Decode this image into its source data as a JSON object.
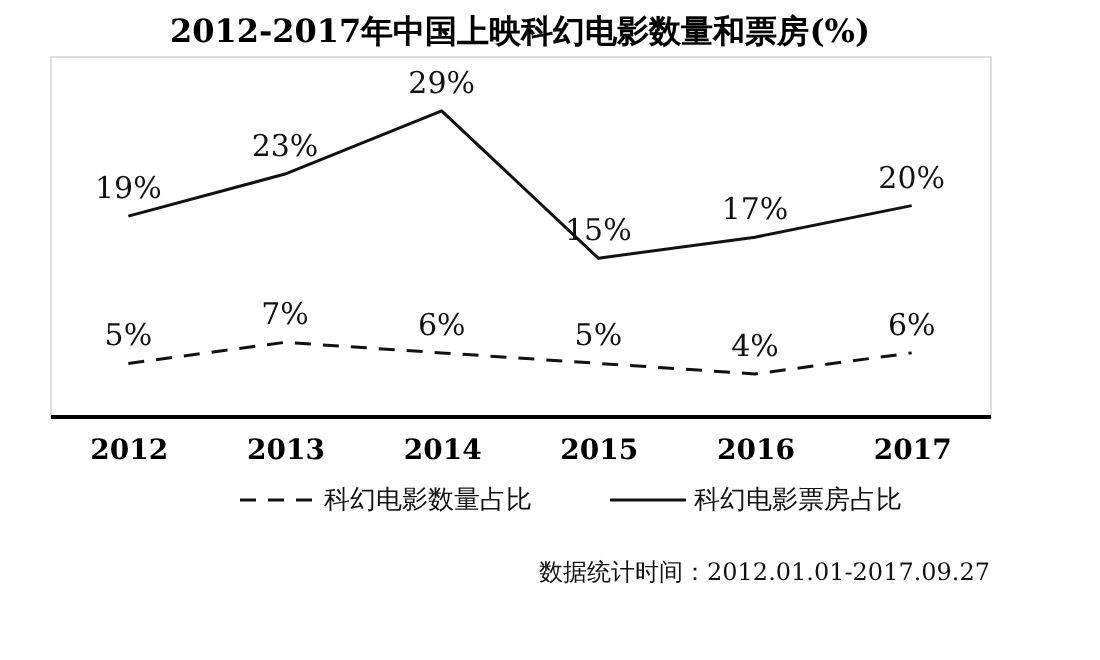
{
  "chart_data": {
    "type": "line",
    "title": "2012-2017年中国上映科幻电影数量和票房(%)",
    "categories": [
      "2012",
      "2013",
      "2014",
      "2015",
      "2016",
      "2017"
    ],
    "series": [
      {
        "name": "科幻电影数量占比",
        "color": "#111111",
        "line_style": "dashed",
        "values": [
          5,
          7,
          6,
          5,
          4,
          6
        ],
        "value_labels": [
          "5%",
          "7%",
          "6%",
          "5%",
          "4%",
          "6%"
        ]
      },
      {
        "name": "科幻电影票房占比",
        "color": "#111111",
        "line_style": "solid",
        "values": [
          19,
          23,
          29,
          15,
          17,
          20
        ],
        "value_labels": [
          "19%",
          "23%",
          "29%",
          "15%",
          "17%",
          "20%"
        ]
      }
    ],
    "legend": "bottom",
    "grid": false,
    "marker": "none",
    "annotations": [
      "数据统计时间：2012.01.01-2017.09.27"
    ]
  }
}
